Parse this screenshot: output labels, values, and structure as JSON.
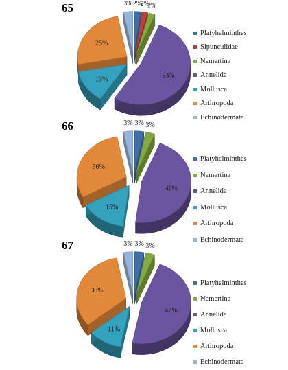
{
  "colors": {
    "Platyhelminthes": "#3f6ea9",
    "Sipunculidae": "#b5403c",
    "Nemertina": "#84a93f",
    "Annelida": "#6b54a0",
    "Mollusca": "#34a1bd",
    "Arthropoda": "#e1883a",
    "Echinodermata": "#96b5dd"
  },
  "chart_data": [
    {
      "type": "pie",
      "title": "65",
      "legend_position": "right",
      "categories": [
        "Platyhelminthes",
        "Sipunculidae",
        "Nemertina",
        "Annelida",
        "Mollusca",
        "Arthropoda",
        "Echinodermata"
      ],
      "values": [
        2,
        2,
        2,
        53,
        13,
        25,
        3
      ],
      "labels": [
        "2%",
        "2%",
        "2%",
        "53%",
        "13%",
        "25%",
        "3%"
      ]
    },
    {
      "type": "pie",
      "title": "66",
      "legend_position": "right",
      "categories": [
        "Platyhelminthes",
        "Nemertina",
        "Annelida",
        "Mollusca",
        "Arthropoda",
        "Echinodermata"
      ],
      "values": [
        3,
        3,
        46,
        15,
        30,
        3
      ],
      "labels": [
        "3%",
        "3%",
        "46%",
        "15%",
        "30%",
        "3%"
      ]
    },
    {
      "type": "pie",
      "title": "67",
      "legend_position": "right",
      "categories": [
        "Platyhelminthes",
        "Nemertina",
        "Annelida",
        "Mollusca",
        "Arthropoda",
        "Echinodermata"
      ],
      "values": [
        3,
        3,
        47,
        11,
        33,
        3
      ],
      "labels": [
        "3%",
        "3%",
        "47%",
        "11%",
        "33%",
        "3%"
      ]
    }
  ]
}
